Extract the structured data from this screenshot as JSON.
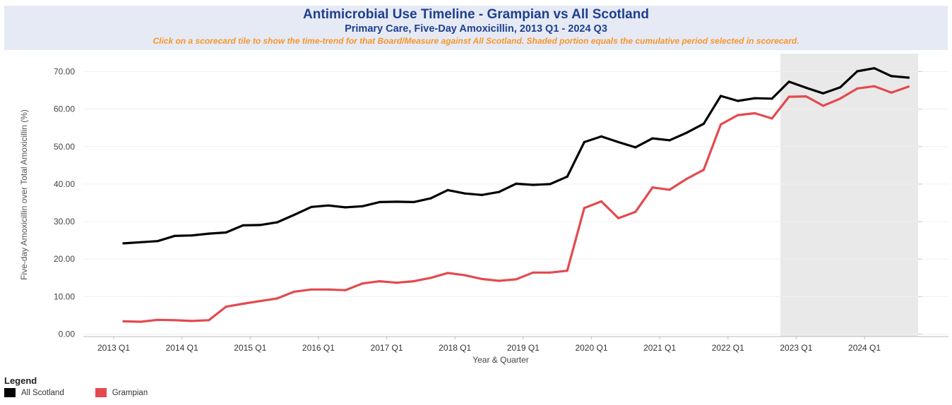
{
  "header": {
    "title": "Antimicrobial Use Timeline - Grampian vs All Scotland",
    "subtitle": "Primary Care, Five-Day Amoxicillin, 2013 Q1 - 2024 Q3",
    "note": "Click on a scorecard tile to show the time-trend for that Board/Measure against All Scotland. Shaded portion equals the cumulative period selected in scorecard."
  },
  "colors": {
    "header_bg": "#e6eaf5",
    "title": "#1f3f8f",
    "note": "#f7962a",
    "shaded_region": "#e9e9e9"
  },
  "chart_data": {
    "type": "line",
    "xlabel": "Year & Quarter",
    "ylabel": "Five-day Amoxicillin over Total Amoxicillin (%)",
    "ylim": [
      0,
      70
    ],
    "yticks": [
      "0.00",
      "10.00",
      "20.00",
      "30.00",
      "40.00",
      "50.00",
      "60.00",
      "70.00"
    ],
    "x_tick_labels": [
      "2013 Q1",
      "2014 Q1",
      "2015 Q1",
      "2016 Q1",
      "2017 Q1",
      "2018 Q1",
      "2019 Q1",
      "2020 Q1",
      "2021 Q1",
      "2022 Q1",
      "2023 Q1",
      "2024 Q1"
    ],
    "categories": [
      "2013 Q1",
      "2013 Q2",
      "2013 Q3",
      "2013 Q4",
      "2014 Q1",
      "2014 Q2",
      "2014 Q3",
      "2014 Q4",
      "2015 Q1",
      "2015 Q2",
      "2015 Q3",
      "2015 Q4",
      "2016 Q1",
      "2016 Q2",
      "2016 Q3",
      "2016 Q4",
      "2017 Q1",
      "2017 Q2",
      "2017 Q3",
      "2017 Q4",
      "2018 Q1",
      "2018 Q2",
      "2018 Q3",
      "2018 Q4",
      "2019 Q1",
      "2019 Q2",
      "2019 Q3",
      "2019 Q4",
      "2020 Q1",
      "2020 Q2",
      "2020 Q3",
      "2020 Q4",
      "2021 Q1",
      "2021 Q2",
      "2021 Q3",
      "2021 Q4",
      "2022 Q1",
      "2022 Q2",
      "2022 Q3",
      "2022 Q4",
      "2023 Q1",
      "2023 Q2",
      "2023 Q3",
      "2023 Q4",
      "2024 Q1",
      "2024 Q2",
      "2024 Q3"
    ],
    "series": [
      {
        "name": "All Scotland",
        "color": "#000000",
        "values": [
          24.2,
          24.5,
          24.8,
          26.2,
          26.3,
          26.8,
          27.1,
          29.0,
          29.1,
          29.8,
          31.8,
          33.9,
          34.3,
          33.8,
          34.1,
          35.2,
          35.3,
          35.2,
          36.2,
          38.4,
          37.5,
          37.1,
          37.9,
          40.1,
          39.8,
          40.0,
          42.0,
          51.2,
          52.7,
          51.2,
          49.8,
          52.2,
          51.7,
          53.7,
          56.1,
          63.5,
          62.2,
          62.9,
          62.8,
          67.3,
          65.7,
          64.2,
          65.8,
          70.1,
          70.9,
          68.8,
          68.4
        ]
      },
      {
        "name": "Grampian",
        "color": "#e34a4f",
        "values": [
          3.4,
          3.3,
          3.8,
          3.7,
          3.5,
          3.7,
          7.3,
          8.1,
          8.8,
          9.5,
          11.3,
          11.9,
          11.9,
          11.7,
          13.5,
          14.1,
          13.7,
          14.1,
          15.0,
          16.3,
          15.7,
          14.7,
          14.2,
          14.6,
          16.4,
          16.4,
          16.9,
          33.6,
          35.4,
          30.9,
          32.6,
          39.1,
          38.5,
          41.4,
          43.8,
          55.9,
          58.4,
          58.9,
          57.5,
          63.3,
          63.4,
          60.9,
          62.8,
          65.5,
          66.1,
          64.4,
          66.0
        ]
      }
    ],
    "shaded_period": {
      "from": "2022 Q4",
      "to": "2024 Q3"
    },
    "grid": true,
    "legend_position": "bottom-left"
  },
  "legend": {
    "title": "Legend",
    "items": [
      {
        "label": "All Scotland",
        "color": "#000000"
      },
      {
        "label": "Grampian",
        "color": "#e34a4f"
      }
    ]
  }
}
